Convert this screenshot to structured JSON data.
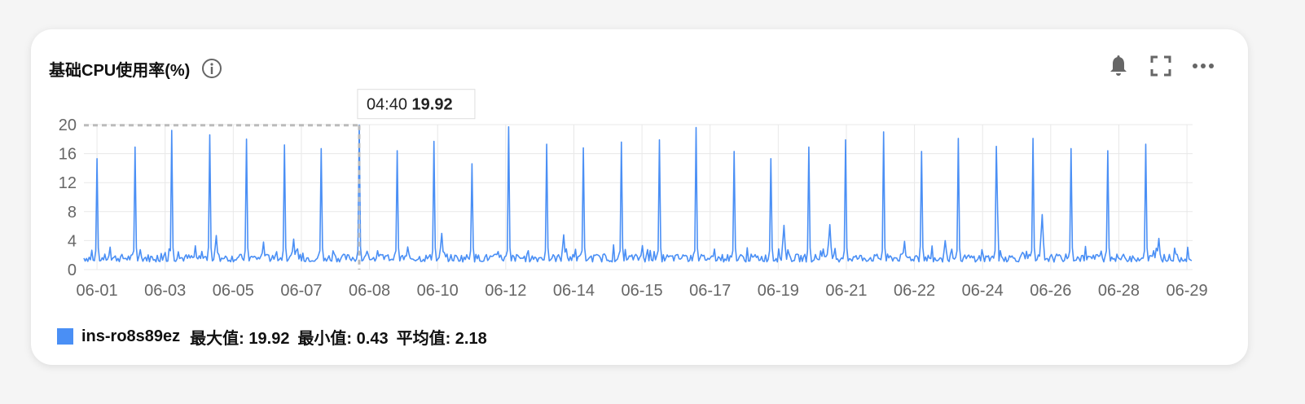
{
  "panel": {
    "title": "基础CPU使用率(%)",
    "icons": [
      "info-icon",
      "bell-icon",
      "fullscreen-icon",
      "more-icon"
    ]
  },
  "legend": {
    "series_name": "ins-ro8s89ez",
    "max_text": "最大值: 19.92",
    "min_text": "最小值: 0.43",
    "avg_text": "平均值: 2.18"
  },
  "tooltip": {
    "time": "04:40",
    "value": "19.92"
  },
  "chart_data": {
    "type": "line",
    "title": "基础CPU使用率(%)",
    "xlabel": "",
    "ylabel": "",
    "ylim": [
      0,
      20
    ],
    "yticks": [
      0,
      4,
      8,
      12,
      16,
      20
    ],
    "xrange": [
      0,
      29.6
    ],
    "xtick_labels": [
      "06-01",
      "06-03",
      "06-05",
      "06-07",
      "06-08",
      "06-10",
      "06-12",
      "06-14",
      "06-15",
      "06-17",
      "06-19",
      "06-21",
      "06-22",
      "06-24",
      "06-26",
      "06-28",
      "06-29"
    ],
    "grid": true,
    "legend_position": "bottom-left",
    "series": [
      {
        "name": "ins-ro8s89ez",
        "color": "#4a8ff5",
        "baseline": 1.6,
        "spikes": [
          {
            "x": 0.35,
            "y": 15.3
          },
          {
            "x": 1.35,
            "y": 16.9
          },
          {
            "x": 2.35,
            "y": 19.2
          },
          {
            "x": 3.35,
            "y": 18.6
          },
          {
            "x": 4.35,
            "y": 18.0
          },
          {
            "x": 5.35,
            "y": 17.2
          },
          {
            "x": 6.35,
            "y": 16.7
          },
          {
            "x": 7.35,
            "y": 19.92
          },
          {
            "x": 8.35,
            "y": 16.4
          },
          {
            "x": 9.35,
            "y": 17.7
          },
          {
            "x": 10.35,
            "y": 14.6
          },
          {
            "x": 11.35,
            "y": 19.7
          },
          {
            "x": 12.35,
            "y": 17.3
          },
          {
            "x": 13.35,
            "y": 16.8
          },
          {
            "x": 14.35,
            "y": 17.6
          },
          {
            "x": 15.35,
            "y": 17.9
          },
          {
            "x": 16.35,
            "y": 19.6
          },
          {
            "x": 17.35,
            "y": 16.3
          },
          {
            "x": 18.35,
            "y": 15.3
          },
          {
            "x": 19.35,
            "y": 16.9
          },
          {
            "x": 20.35,
            "y": 17.9
          },
          {
            "x": 21.35,
            "y": 19.0
          },
          {
            "x": 22.35,
            "y": 16.3
          },
          {
            "x": 23.35,
            "y": 18.1
          },
          {
            "x": 24.35,
            "y": 17.0
          },
          {
            "x": 25.35,
            "y": 18.1
          },
          {
            "x": 26.35,
            "y": 16.7
          },
          {
            "x": 27.35,
            "y": 16.4
          },
          {
            "x": 28.35,
            "y": 17.3
          }
        ],
        "bumps": [
          {
            "x": 3.55,
            "y": 4.7
          },
          {
            "x": 4.8,
            "y": 3.8
          },
          {
            "x": 5.6,
            "y": 4.2
          },
          {
            "x": 9.55,
            "y": 5.0
          },
          {
            "x": 12.8,
            "y": 4.8
          },
          {
            "x": 14.9,
            "y": 3.3
          },
          {
            "x": 18.7,
            "y": 6.1
          },
          {
            "x": 19.9,
            "y": 6.2
          },
          {
            "x": 21.9,
            "y": 3.9
          },
          {
            "x": 23.0,
            "y": 4.0
          },
          {
            "x": 24.4,
            "y": 7.8
          },
          {
            "x": 25.6,
            "y": 7.6
          },
          {
            "x": 28.7,
            "y": 4.3
          }
        ],
        "min": 0.43,
        "max": 19.92,
        "avg": 2.18
      }
    ]
  },
  "colors": {
    "line": "#4a8ff5",
    "grid": "#e8e8e8",
    "axis_text": "#666666",
    "crosshair": "#bbbbbb"
  }
}
